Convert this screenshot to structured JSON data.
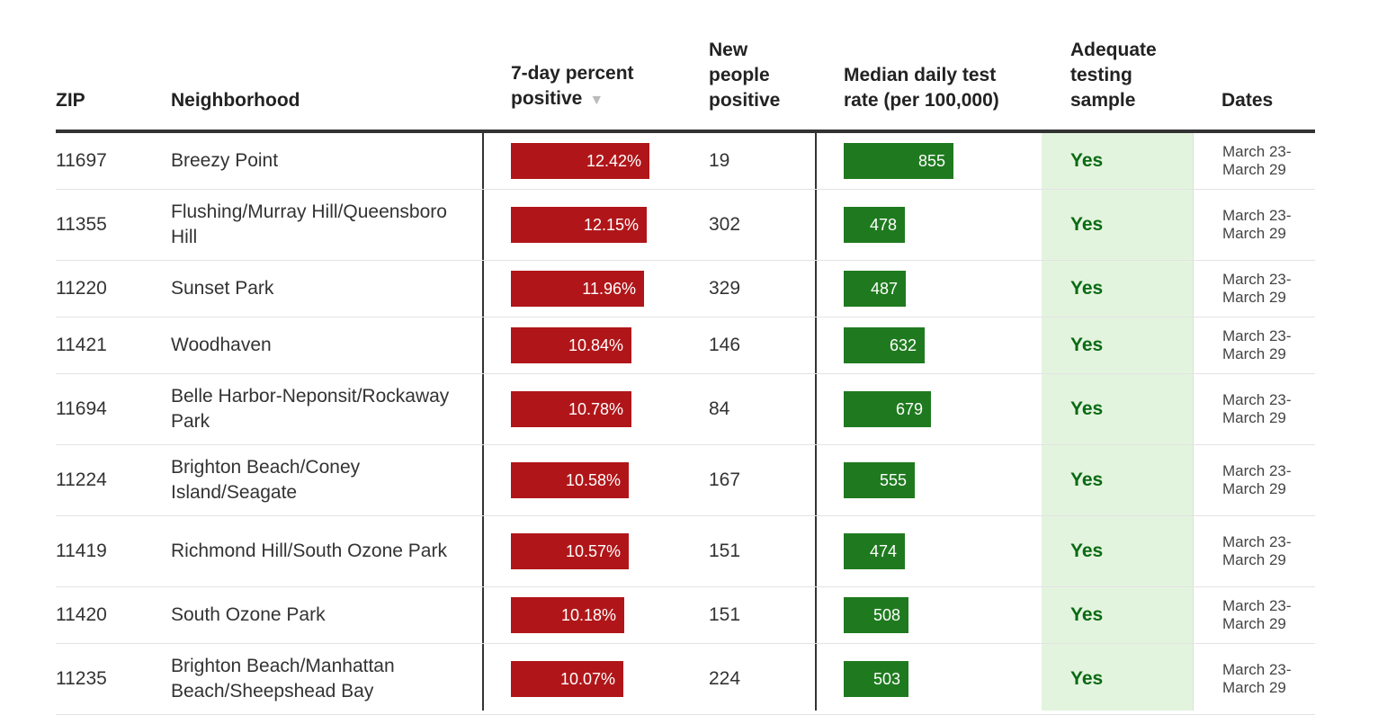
{
  "table": {
    "headers": {
      "zip": "ZIP",
      "neighborhood": "Neighborhood",
      "pct_positive": "7-day percent positive",
      "new_positive": "New people positive",
      "test_rate": "Median daily test rate (per 100,000)",
      "adequate": "Adequate testing sample",
      "dates": "Dates"
    },
    "sort_indicator": "▼",
    "rows": [
      {
        "zip": "11697",
        "neighborhood": "Breezy Point",
        "pct": "12.42%",
        "pct_value": 12.42,
        "new_positive": "19",
        "rate": "855",
        "rate_value": 855,
        "adequate": "Yes",
        "dates": "March 23-\nMarch 29"
      },
      {
        "zip": "11355",
        "neighborhood": "Flushing/Murray Hill/Queensboro Hill",
        "pct": "12.15%",
        "pct_value": 12.15,
        "new_positive": "302",
        "rate": "478",
        "rate_value": 478,
        "adequate": "Yes",
        "dates": "March 23-\nMarch 29"
      },
      {
        "zip": "11220",
        "neighborhood": "Sunset Park",
        "pct": "11.96%",
        "pct_value": 11.96,
        "new_positive": "329",
        "rate": "487",
        "rate_value": 487,
        "adequate": "Yes",
        "dates": "March 23-\nMarch 29"
      },
      {
        "zip": "11421",
        "neighborhood": "Woodhaven",
        "pct": "10.84%",
        "pct_value": 10.84,
        "new_positive": "146",
        "rate": "632",
        "rate_value": 632,
        "adequate": "Yes",
        "dates": "March 23-\nMarch 29"
      },
      {
        "zip": "11694",
        "neighborhood": "Belle Harbor-Neponsit/Rockaway Park",
        "pct": "10.78%",
        "pct_value": 10.78,
        "new_positive": "84",
        "rate": "679",
        "rate_value": 679,
        "adequate": "Yes",
        "dates": "March 23-\nMarch 29"
      },
      {
        "zip": "11224",
        "neighborhood": "Brighton Beach/Coney Island/Seagate",
        "pct": "10.58%",
        "pct_value": 10.58,
        "new_positive": "167",
        "rate": "555",
        "rate_value": 555,
        "adequate": "Yes",
        "dates": "March 23-\nMarch 29"
      },
      {
        "zip": "11419",
        "neighborhood": "Richmond Hill/South Ozone Park",
        "pct": "10.57%",
        "pct_value": 10.57,
        "new_positive": "151",
        "rate": "474",
        "rate_value": 474,
        "adequate": "Yes",
        "dates": "March 23-\nMarch 29"
      },
      {
        "zip": "11420",
        "neighborhood": "South Ozone Park",
        "pct": "10.18%",
        "pct_value": 10.18,
        "new_positive": "151",
        "rate": "508",
        "rate_value": 508,
        "adequate": "Yes",
        "dates": "March 23-\nMarch 29"
      },
      {
        "zip": "11235",
        "neighborhood": "Brighton Beach/Manhattan Beach/Sheepshead Bay",
        "pct": "10.07%",
        "pct_value": 10.07,
        "new_positive": "224",
        "rate": "503",
        "rate_value": 503,
        "adequate": "Yes",
        "dates": "March 23-\nMarch 29"
      }
    ]
  },
  "colors": {
    "pct_bar": "#b01619",
    "rate_bar": "#1f7a1f",
    "adequate_bg": "#e3f4de",
    "adequate_text": "#0a6a14"
  }
}
